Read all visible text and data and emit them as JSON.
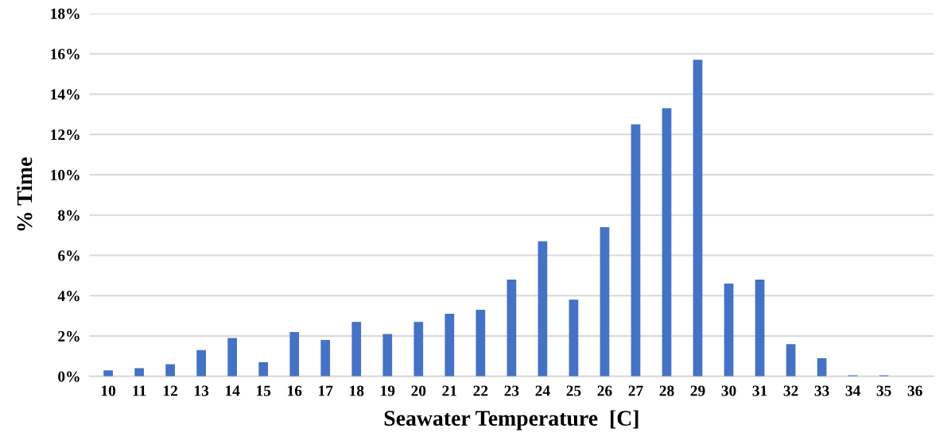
{
  "chart_data": {
    "type": "bar",
    "xlabel": "Seawater Temperature  [C]",
    "ylabel": "% Time",
    "categories": [
      "10",
      "11",
      "12",
      "13",
      "14",
      "15",
      "16",
      "17",
      "18",
      "19",
      "20",
      "21",
      "22",
      "23",
      "24",
      "25",
      "26",
      "27",
      "28",
      "29",
      "30",
      "31",
      "32",
      "33",
      "34",
      "35",
      "36"
    ],
    "values": [
      0.3,
      0.4,
      0.6,
      1.3,
      1.9,
      0.7,
      2.2,
      1.8,
      2.7,
      2.1,
      2.7,
      3.1,
      3.3,
      4.8,
      6.7,
      3.8,
      7.4,
      12.5,
      13.3,
      15.7,
      4.6,
      4.8,
      1.6,
      0.9,
      0.05,
      0.05,
      0
    ],
    "color": "#4472c4",
    "ylim": [
      0,
      18
    ],
    "yticks": [
      {
        "value": 0,
        "label": "0%"
      },
      {
        "value": 2,
        "label": "2%"
      },
      {
        "value": 4,
        "label": "4%"
      },
      {
        "value": 6,
        "label": "6%"
      },
      {
        "value": 8,
        "label": "8%"
      },
      {
        "value": 10,
        "label": "10%"
      },
      {
        "value": 12,
        "label": "12%"
      },
      {
        "value": 14,
        "label": "14%"
      },
      {
        "value": 16,
        "label": "16%"
      },
      {
        "value": 18,
        "label": "18%"
      }
    ],
    "grid": "y"
  }
}
